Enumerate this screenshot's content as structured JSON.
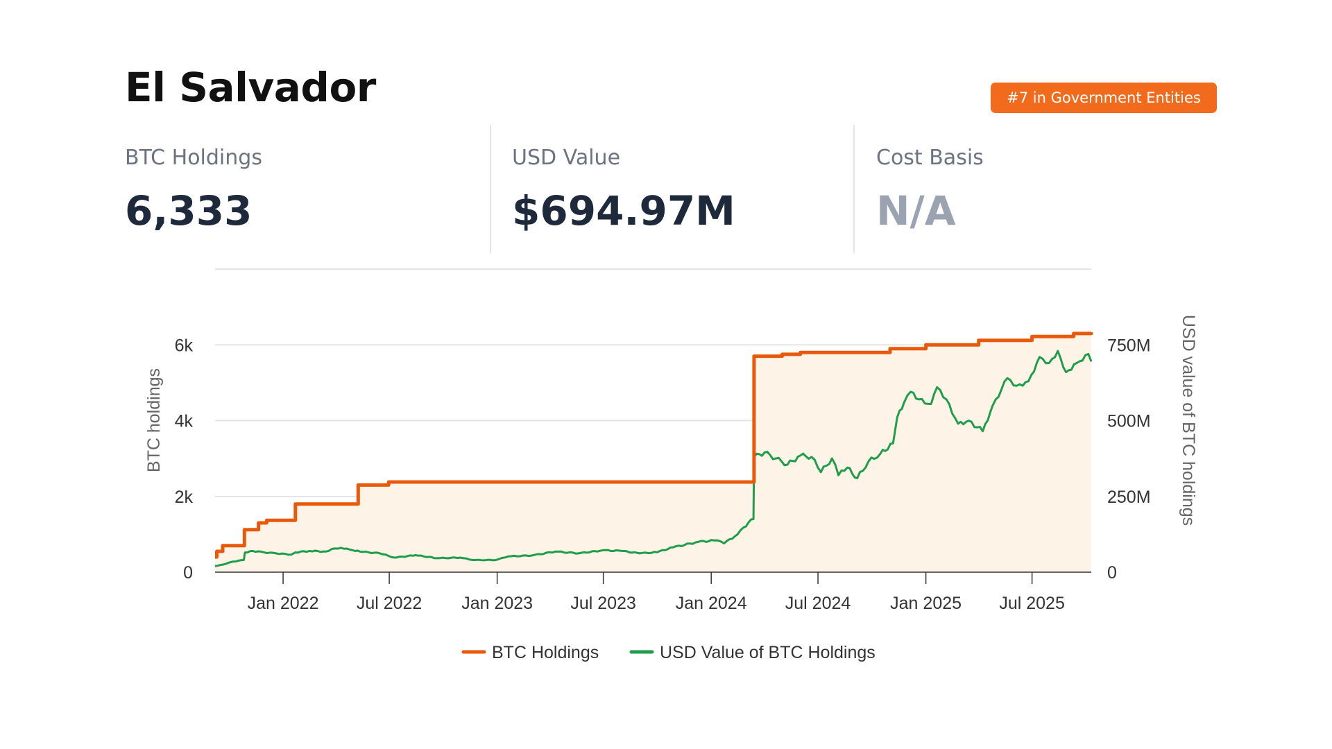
{
  "header": {
    "title": "El Salvador",
    "rank_badge": "#7 in Government Entities"
  },
  "stats": [
    {
      "label": "BTC Holdings",
      "value": "6,333"
    },
    {
      "label": "USD Value",
      "value": "$694.97M"
    },
    {
      "label": "Cost Basis",
      "value": "N/A"
    }
  ],
  "colors": {
    "accent": "#f26b1d",
    "btc_line": "#e8590c",
    "usd_line": "#1f9d4a",
    "btc_fill": "#fdf3e6",
    "usd_fill": "#eeeedc"
  },
  "chart_data": {
    "type": "line",
    "xlabel": "",
    "ylabel": "BTC holdings",
    "y2label": "USD value of BTC holdings",
    "x_range": [
      "2021-09-07",
      "2025-10-10"
    ],
    "x_ticks": [
      {
        "date": "2022-01-01",
        "label": "Jan 2022"
      },
      {
        "date": "2022-07-01",
        "label": "Jul 2022"
      },
      {
        "date": "2023-01-01",
        "label": "Jan 2023"
      },
      {
        "date": "2023-07-01",
        "label": "Jul 2023"
      },
      {
        "date": "2024-01-01",
        "label": "Jan 2024"
      },
      {
        "date": "2024-07-01",
        "label": "Jul 2024"
      },
      {
        "date": "2025-01-01",
        "label": "Jan 2025"
      },
      {
        "date": "2025-07-01",
        "label": "Jul 2025"
      }
    ],
    "ylim": [
      0,
      8000
    ],
    "y_ticks": [
      {
        "value": 0,
        "label": "0"
      },
      {
        "value": 2000,
        "label": "2k"
      },
      {
        "value": 4000,
        "label": "4k"
      },
      {
        "value": 6000,
        "label": "6k"
      }
    ],
    "y2lim": [
      0,
      1000
    ],
    "y2_ticks": [
      {
        "value": 0,
        "label": "0"
      },
      {
        "value": 250,
        "label": "250M"
      },
      {
        "value": 500,
        "label": "500M"
      },
      {
        "value": 750,
        "label": "750M"
      }
    ],
    "grid": true,
    "legend_position": "bottom",
    "series": [
      {
        "name": "BTC Holdings",
        "axis": "left",
        "unit": "BTC",
        "step": true,
        "points": [
          [
            "2021-09-07",
            400
          ],
          [
            "2021-09-10",
            550
          ],
          [
            "2021-09-20",
            700
          ],
          [
            "2021-10-27",
            1120
          ],
          [
            "2021-11-20",
            1300
          ],
          [
            "2021-12-04",
            1370
          ],
          [
            "2022-01-22",
            1800
          ],
          [
            "2022-05-09",
            2300
          ],
          [
            "2022-06-30",
            2380
          ],
          [
            "2024-03-14",
            5700
          ],
          [
            "2024-05-01",
            5750
          ],
          [
            "2024-06-01",
            5800
          ],
          [
            "2024-11-01",
            5900
          ],
          [
            "2025-01-01",
            6000
          ],
          [
            "2025-04-01",
            6120
          ],
          [
            "2025-07-01",
            6220
          ],
          [
            "2025-09-10",
            6300
          ],
          [
            "2025-10-10",
            6333
          ]
        ]
      },
      {
        "name": "USD Value of BTC Holdings",
        "axis": "right",
        "unit": "USD millions",
        "step": false,
        "points": [
          [
            "2021-09-07",
            20
          ],
          [
            "2021-09-20",
            25
          ],
          [
            "2021-10-08",
            35
          ],
          [
            "2021-10-26",
            40
          ],
          [
            "2021-10-28",
            65
          ],
          [
            "2021-11-10",
            70
          ],
          [
            "2021-11-30",
            65
          ],
          [
            "2021-12-20",
            62
          ],
          [
            "2022-01-15",
            58
          ],
          [
            "2022-01-22",
            65
          ],
          [
            "2022-02-15",
            70
          ],
          [
            "2022-03-15",
            68
          ],
          [
            "2022-03-30",
            78
          ],
          [
            "2022-04-10",
            80
          ],
          [
            "2022-04-30",
            72
          ],
          [
            "2022-05-12",
            68
          ],
          [
            "2022-06-15",
            62
          ],
          [
            "2022-07-10",
            48
          ],
          [
            "2022-08-15",
            56
          ],
          [
            "2022-09-20",
            46
          ],
          [
            "2022-10-30",
            48
          ],
          [
            "2022-11-20",
            40
          ],
          [
            "2022-12-30",
            40
          ],
          [
            "2023-01-20",
            52
          ],
          [
            "2023-03-01",
            55
          ],
          [
            "2023-04-10",
            68
          ],
          [
            "2023-05-20",
            62
          ],
          [
            "2023-06-30",
            72
          ],
          [
            "2023-08-01",
            70
          ],
          [
            "2023-09-01",
            62
          ],
          [
            "2023-10-01",
            66
          ],
          [
            "2023-10-28",
            82
          ],
          [
            "2023-12-10",
            100
          ],
          [
            "2024-01-10",
            105
          ],
          [
            "2024-01-23",
            95
          ],
          [
            "2024-02-15",
            125
          ],
          [
            "2024-03-05",
            165
          ],
          [
            "2024-03-13",
            175
          ],
          [
            "2024-03-14",
            380
          ],
          [
            "2024-04-01",
            395
          ],
          [
            "2024-04-20",
            375
          ],
          [
            "2024-05-10",
            355
          ],
          [
            "2024-06-01",
            385
          ],
          [
            "2024-06-20",
            380
          ],
          [
            "2024-07-06",
            330
          ],
          [
            "2024-07-25",
            375
          ],
          [
            "2024-08-05",
            320
          ],
          [
            "2024-08-20",
            345
          ],
          [
            "2024-09-06",
            310
          ],
          [
            "2024-09-25",
            365
          ],
          [
            "2024-10-15",
            390
          ],
          [
            "2024-11-06",
            425
          ],
          [
            "2024-11-13",
            510
          ],
          [
            "2024-11-25",
            560
          ],
          [
            "2024-12-06",
            595
          ],
          [
            "2024-12-20",
            570
          ],
          [
            "2025-01-10",
            555
          ],
          [
            "2025-01-20",
            610
          ],
          [
            "2025-02-05",
            570
          ],
          [
            "2025-02-25",
            490
          ],
          [
            "2025-03-15",
            500
          ],
          [
            "2025-04-08",
            465
          ],
          [
            "2025-04-25",
            550
          ],
          [
            "2025-05-20",
            640
          ],
          [
            "2025-06-05",
            615
          ],
          [
            "2025-06-25",
            630
          ],
          [
            "2025-07-14",
            710
          ],
          [
            "2025-07-30",
            690
          ],
          [
            "2025-08-14",
            730
          ],
          [
            "2025-08-28",
            660
          ],
          [
            "2025-09-15",
            690
          ],
          [
            "2025-10-05",
            720
          ],
          [
            "2025-10-10",
            695
          ]
        ]
      }
    ]
  }
}
